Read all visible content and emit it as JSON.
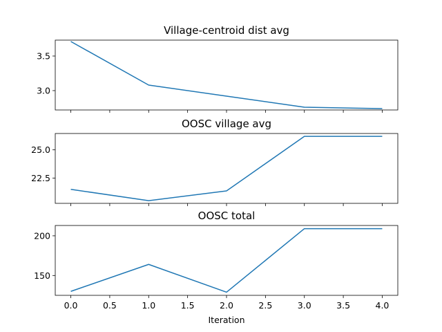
{
  "chart_data": [
    {
      "type": "line",
      "title": "Village-centroid dist avg",
      "xlabel": "",
      "ylabel": "",
      "x": [
        0,
        1,
        2,
        3,
        4
      ],
      "series": [
        {
          "values": [
            3.71,
            3.08,
            2.92,
            2.76,
            2.74
          ]
        }
      ],
      "ylim": [
        2.72,
        3.73
      ],
      "yticks": [
        3.0,
        3.5
      ],
      "ytick_labels": [
        "3.0",
        "3.5"
      ],
      "line_color": "#1f77b4"
    },
    {
      "type": "line",
      "title": "OOSC village avg",
      "xlabel": "",
      "ylabel": "",
      "x": [
        0,
        1,
        2,
        3,
        4
      ],
      "series": [
        {
          "values": [
            21.5,
            20.5,
            21.36,
            26.2,
            26.2
          ]
        }
      ],
      "ylim": [
        20.26,
        26.45
      ],
      "yticks": [
        22.5,
        25.0
      ],
      "ytick_labels": [
        "22.5",
        "25.0"
      ],
      "line_color": "#1f77b4"
    },
    {
      "type": "line",
      "title": "OOSC total",
      "xlabel": "Iteration",
      "ylabel": "",
      "x": [
        0,
        1,
        2,
        3,
        4
      ],
      "series": [
        {
          "values": [
            130,
            164,
            129,
            209,
            209
          ]
        }
      ],
      "ylim": [
        125,
        213
      ],
      "yticks": [
        150,
        200
      ],
      "ytick_labels": [
        "150",
        "200"
      ],
      "xticks": [
        0,
        0.5,
        1,
        1.5,
        2,
        2.5,
        3,
        3.5,
        4
      ],
      "xtick_labels": [
        "0.0",
        "0.5",
        "1.0",
        "1.5",
        "2.0",
        "2.5",
        "3.0",
        "3.5",
        "4.0"
      ],
      "line_color": "#1f77b4"
    }
  ]
}
